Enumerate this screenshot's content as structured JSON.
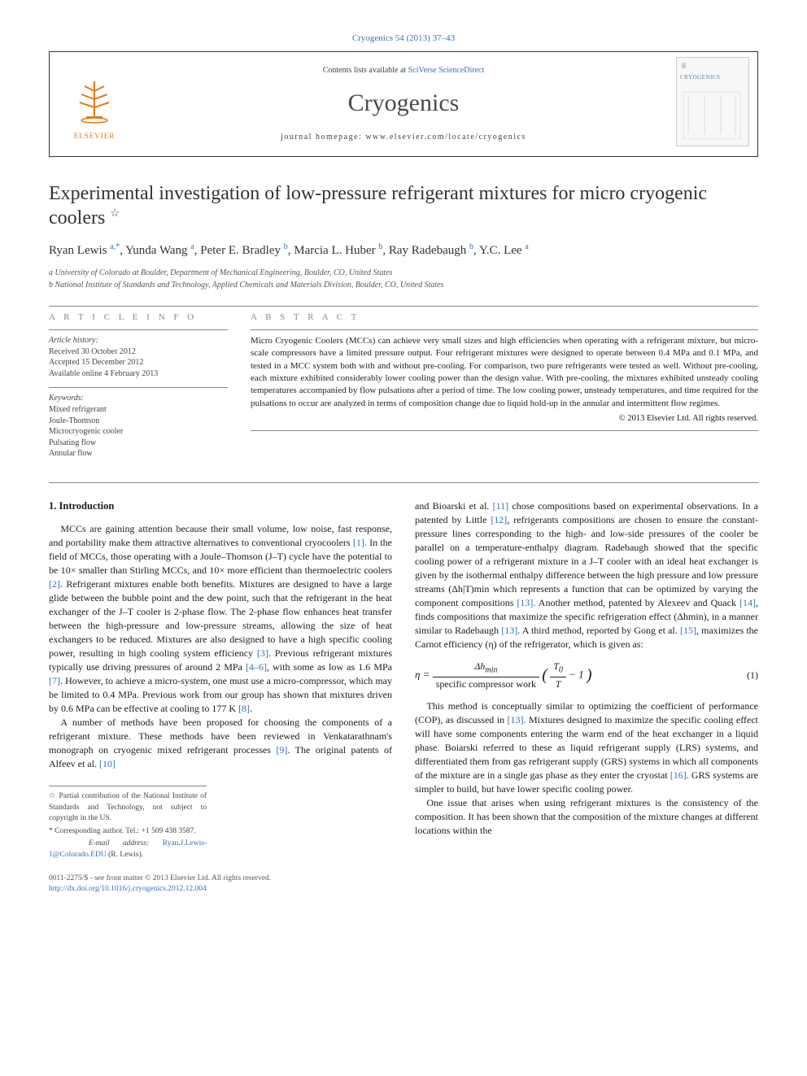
{
  "citation": "Cryogenics 54 (2013) 37–43",
  "header": {
    "publisher_logo_text": "ELSEVIER",
    "contents_prefix": "Contents lists available at ",
    "contents_link": "SciVerse ScienceDirect",
    "journal_name": "Cryogenics",
    "homepage_prefix": "journal homepage: ",
    "homepage_url": "www.elsevier.com/locate/cryogenics",
    "cover_title": "CRYOGENICS"
  },
  "title": "Experimental investigation of low-pressure refrigerant mixtures for micro cryogenic coolers",
  "title_star": "☆",
  "authors_html": "Ryan Lewis <sup class=\"author-link\">a,</sup><sup class=\"author-link\">*</sup>, Yunda Wang <sup class=\"author-link\">a</sup>, Peter E. Bradley <sup class=\"author-link\">b</sup>, Marcia L. Huber <sup class=\"author-link\">b</sup>, Ray Radebaugh <sup class=\"author-link\">b</sup>, Y.C. Lee <sup class=\"author-link\">a</sup>",
  "affiliations": {
    "a": "a University of Colorado at Boulder, Department of Mechanical Engineering, Boulder, CO, United States",
    "b": "b National Institute of Standards and Technology, Applied Chemicals and Materials Division, Boulder, CO, United States"
  },
  "info": {
    "heading": "A R T I C L E   I N F O",
    "history_label": "Article history:",
    "received": "Received 30 October 2012",
    "accepted": "Accepted 15 December 2012",
    "online": "Available online 4 February 2013",
    "keywords_label": "Keywords:",
    "keywords": [
      "Mixed refrigerant",
      "Joule-Thomson",
      "Microcryogenic cooler",
      "Pulsating flow",
      "Annular flow"
    ]
  },
  "abstract": {
    "heading": "A B S T R A C T",
    "body": "Micro Cryogenic Coolers (MCCs) can achieve very small sizes and high efficiencies when operating with a refrigerant mixture, but micro-scale compressors have a limited pressure output. Four refrigerant mixtures were designed to operate between 0.4 MPa and 0.1 MPa, and tested in a MCC system both with and without pre-cooling. For comparison, two pure refrigerants were tested as well. Without pre-cooling, each mixture exhibited considerably lower cooling power than the design value. With pre-cooling, the mixtures exhibited unsteady cooling temperatures accompanied by flow pulsations after a period of time. The low cooling power, unsteady temperatures, and time required for the pulsations to occur are analyzed in terms of composition change due to liquid hold-up in the annular and intermittent flow regimes.",
    "copyright": "© 2013 Elsevier Ltd. All rights reserved."
  },
  "section1_heading": "1. Introduction",
  "body": {
    "p1": "MCCs are gaining attention because their small volume, low noise, fast response, and portability make them attractive alternatives to conventional cryocoolers [1]. In the field of MCCs, those operating with a Joule–Thomson (J–T) cycle have the potential to be 10× smaller than Stirling MCCs, and 10× more efficient than thermoelectric coolers [2]. Refrigerant mixtures enable both benefits. Mixtures are designed to have a large glide between the bubble point and the dew point, such that the refrigerant in the heat exchanger of the J–T cooler is 2-phase flow. The 2-phase flow enhances heat transfer between the high-pressure and low-pressure streams, allowing the size of heat exchangers to be reduced. Mixtures are also designed to have a high specific cooling power, resulting in high cooling system efficiency [3]. Previous refrigerant mixtures typically use driving pressures of around 2 MPa [4–6], with some as low as 1.6 MPa [7]. However, to achieve a micro-system, one must use a micro-compressor, which may be limited to 0.4 MPa. Previous work from our group has shown that mixtures driven by 0.6 MPa can be effective at cooling to 177 K [8].",
    "p2": "A number of methods have been proposed for choosing the components of a refrigerant mixture. These methods have been reviewed in Venkatarathnam's monograph on cryogenic mixed refrigerant processes [9]. The original patents of Alfeev et al. [10]",
    "p3": "and Bioarski et al. [11] chose compositions based on experimental observations. In a patented by Little [12], refrigerants compositions are chosen to ensure the constant-pressure lines corresponding to the high- and low-side pressures of the cooler be parallel on a temperature-enthalpy diagram. Radebaugh showed that the specific cooling power of a refrigerant mixture in a J–T cooler with an ideal heat exchanger is given by the isothermal enthalpy difference between the high pressure and low pressure streams (Δh|T)min which represents a function that can be optimized by varying the component compositions [13]. Another method, patented by Alexeev and Quack [14], finds compositions that maximize the specific refrigeration effect (Δhmin), in a manner similar to Radebaugh [13]. A third method, reported by Gong et al. [15], maximizes the Carnot efficiency (η) of the refrigerator, which is given as:",
    "p4": "This method is conceptually similar to optimizing the coefficient of performance (COP), as discussed in [13]. Mixtures designed to maximize the specific cooling effect will have some components entering the warm end of the heat exchanger in a liquid phase. Boiarski referred to these as liquid refrigerant supply (LRS) systems, and differentiated them from gas refrigerant supply (GRS) systems in which all components of the mixture are in a single gas phase as they enter the cryostat [16]. GRS systems are simpler to build, but have lower specific cooling power.",
    "p5": "One issue that arises when using refrigerant mixtures is the consistency of the composition. It has been shown that the composition of the mixture changes at different locations within the"
  },
  "equation": {
    "lhs": "η =",
    "num": "Δh_min",
    "den": "specific compressor work",
    "rhs_open": "(",
    "rhs_num": "T₀",
    "rhs_den": "T",
    "rhs_tail": " − 1",
    "rhs_close": ")",
    "number": "(1)"
  },
  "footnotes": {
    "star": "☆ Partial contribution of the National Institute of Standards and Technology, not subject to copyright in the US.",
    "corr_label": "* Corresponding author. Tel.: +1 509 438 3587.",
    "email_label": "E-mail address: ",
    "email": "Ryan.J.Lewis-1@Colorado.EDU",
    "email_tail": " (R. Lewis)."
  },
  "bottom": {
    "left1": "0011-2275/$ - see front matter © 2013 Elsevier Ltd. All rights reserved.",
    "doi": "http://dx.doi.org/10.1016/j.cryogenics.2012.12.004"
  },
  "colors": {
    "link": "#3a6fb7",
    "orange": "#e67817",
    "text": "#1a1a1a",
    "muted": "#888"
  }
}
